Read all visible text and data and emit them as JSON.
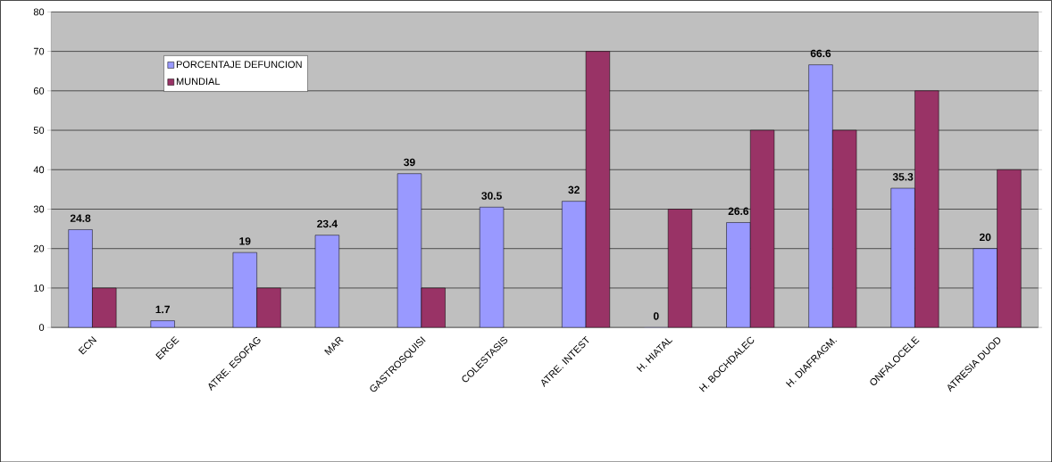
{
  "chart_data": {
    "type": "bar",
    "categories": [
      "ECN",
      "ERGE",
      "ATRE. ESOFAG",
      "MAR",
      "GASTROSQUISI",
      "COLESTASIS",
      "ATRE. INTEST",
      "H. HIATAL",
      "H. BOCHDALEC",
      "H. DIAFRAGM.",
      "ONFALOCELE",
      "ATRESIA DUOD"
    ],
    "series": [
      {
        "name": "PORCENTAJE DEFUNCION",
        "color": "#9999ff",
        "values": [
          24.8,
          1.7,
          19,
          23.4,
          39,
          30.5,
          32,
          0,
          26.6,
          66.6,
          35.3,
          20
        ],
        "value_labels": [
          "24.8",
          "1.7",
          "19",
          "23.4",
          "39",
          "30.5",
          "32",
          "0",
          "26.6",
          "66.6",
          "35.3",
          "20"
        ]
      },
      {
        "name": "MUNDIAL",
        "color": "#993366",
        "values": [
          10,
          null,
          10,
          null,
          10,
          null,
          70,
          30,
          50,
          50,
          60,
          40
        ]
      }
    ],
    "ylim": [
      0,
      80
    ],
    "yticks": [
      0,
      10,
      20,
      30,
      40,
      50,
      60,
      70,
      80
    ],
    "grid": "y",
    "legend": "top left"
  }
}
